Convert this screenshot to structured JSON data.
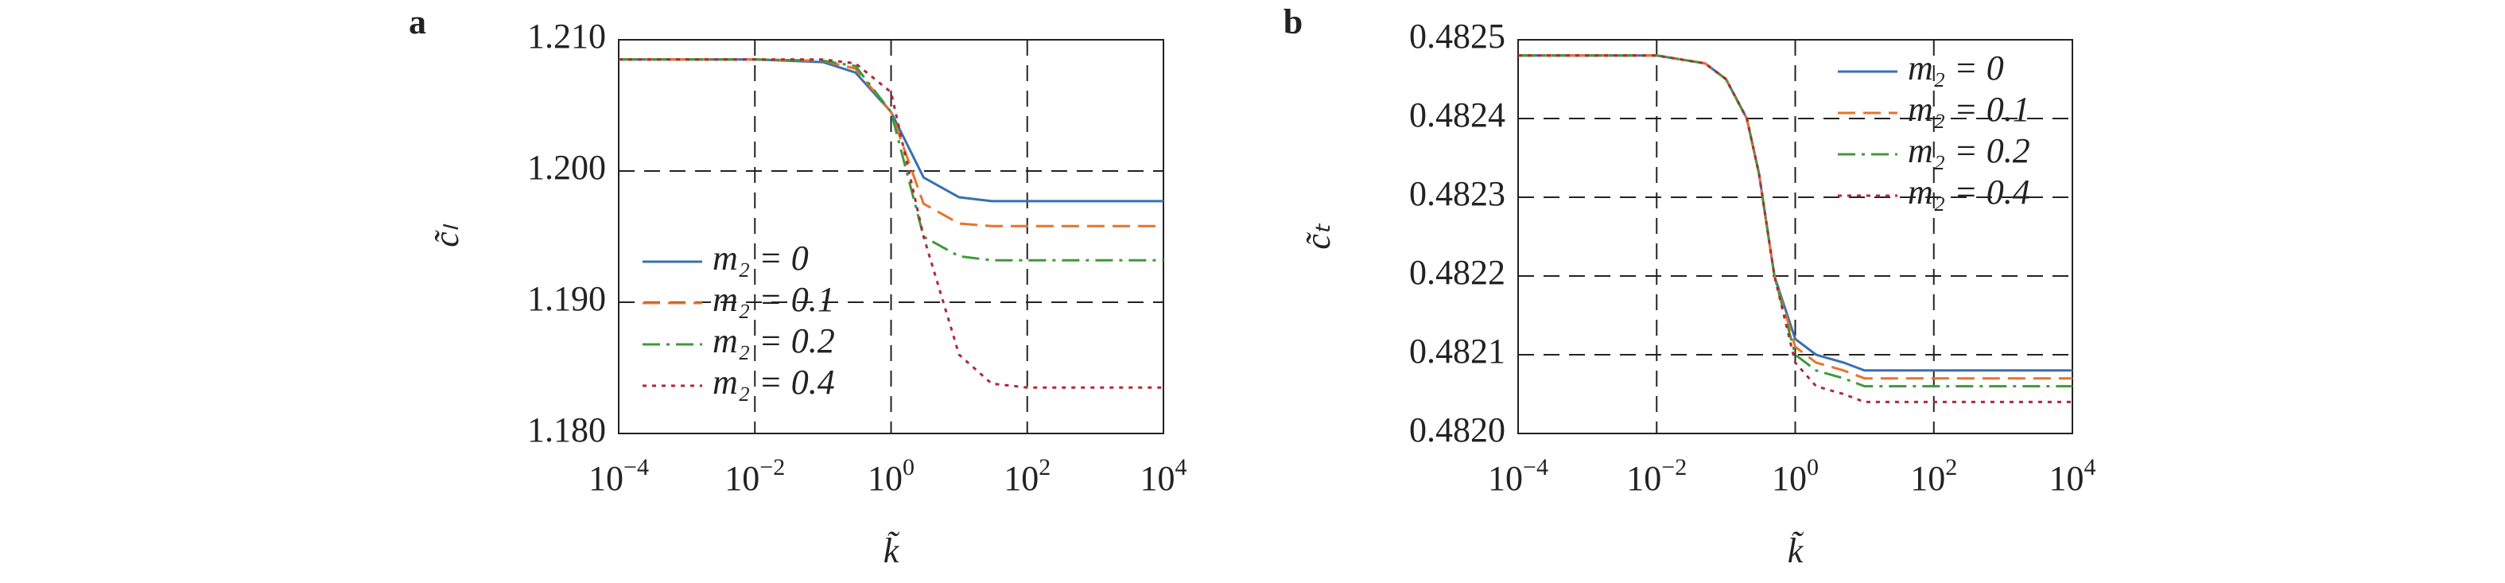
{
  "chart_data": [
    {
      "type": "line",
      "panel": "a",
      "x_label": "k̃",
      "y_label": "c̃ₗ",
      "log_x": true,
      "grid": true,
      "legend": "lower left",
      "xlim": [
        0.0001,
        10000
      ],
      "xticks": [
        {
          "value": 0.0001,
          "label": "10−4"
        },
        {
          "value": 0.01,
          "label": "10−2"
        },
        {
          "value": 1,
          "label": "100"
        },
        {
          "value": 100,
          "label": "102"
        },
        {
          "value": 10000,
          "label": "104"
        }
      ],
      "ylim": [
        1.18,
        1.21
      ],
      "yticks": [
        {
          "value": 1.21,
          "label": "1.210"
        },
        {
          "value": 1.2,
          "label": "1.200"
        },
        {
          "value": 1.19,
          "label": "1.190"
        },
        {
          "value": 1.18,
          "label": "1.180"
        }
      ],
      "x": [
        0.0001,
        0.001,
        0.01,
        0.1,
        0.3,
        1,
        3,
        10,
        30,
        100,
        1000,
        10000
      ],
      "series": [
        {
          "name": "m₂ = 0",
          "color": "#3a6fb0",
          "dash": "solid",
          "values": [
            1.2085,
            1.2085,
            1.2085,
            1.2083,
            1.2075,
            1.2045,
            1.1995,
            1.198,
            1.1977,
            1.1977,
            1.1977,
            1.1977
          ]
        },
        {
          "name": "m₂ = 0.1",
          "color": "#e8732a",
          "dash": "dashed",
          "values": [
            1.2085,
            1.2085,
            1.2085,
            1.2084,
            1.2078,
            1.2045,
            1.1975,
            1.196,
            1.1958,
            1.1958,
            1.1958,
            1.1958
          ]
        },
        {
          "name": "m₂ = 0.2",
          "color": "#3f9a3a",
          "dash": "dashdot",
          "values": [
            1.2085,
            1.2085,
            1.2085,
            1.2084,
            1.208,
            1.2045,
            1.195,
            1.1935,
            1.1932,
            1.1932,
            1.1932,
            1.1932
          ]
        },
        {
          "name": "m₂ = 0.4",
          "color": "#b0283a",
          "dash": "dotted",
          "values": [
            1.2085,
            1.2085,
            1.2085,
            1.2085,
            1.2082,
            1.206,
            1.195,
            1.186,
            1.1838,
            1.1835,
            1.1835,
            1.1835
          ]
        }
      ]
    },
    {
      "type": "line",
      "panel": "b",
      "x_label": "k̃",
      "y_label": "c̃ₜ",
      "log_x": true,
      "grid": true,
      "legend": "upper right",
      "xlim": [
        0.0001,
        10000
      ],
      "xticks": [
        {
          "value": 0.0001,
          "label": "10−4"
        },
        {
          "value": 0.01,
          "label": "10−2"
        },
        {
          "value": 1,
          "label": "100"
        },
        {
          "value": 100,
          "label": "102"
        },
        {
          "value": 10000,
          "label": "104"
        }
      ],
      "ylim": [
        0.482,
        0.4825
      ],
      "yticks": [
        0.4825,
        0.4824,
        0.4823,
        0.4822,
        0.4821,
        {
          "value": 0.482,
          "label": "0.4820"
        }
      ],
      "x": [
        0.0001,
        0.001,
        0.01,
        0.05,
        0.1,
        0.2,
        0.3,
        0.5,
        1,
        2,
        5,
        10,
        100,
        10000
      ],
      "series": [
        {
          "name": "m₂ = 0",
          "color": "#3a6fb0",
          "dash": "solid",
          "values": [
            0.48248,
            0.48248,
            0.48248,
            0.48247,
            0.48245,
            0.4824,
            0.48233,
            0.4822,
            0.48212,
            0.4821,
            0.48209,
            0.48208,
            0.48208,
            0.48208
          ]
        },
        {
          "name": "m₂ = 0.1",
          "color": "#e8732a",
          "dash": "dashed",
          "values": [
            0.48248,
            0.48248,
            0.48248,
            0.48247,
            0.48245,
            0.4824,
            0.48233,
            0.4822,
            0.48211,
            0.48209,
            0.48208,
            0.48207,
            0.48207,
            0.48207
          ]
        },
        {
          "name": "m₂ = 0.2",
          "color": "#3f9a3a",
          "dash": "dashdot",
          "values": [
            0.48248,
            0.48248,
            0.48248,
            0.48247,
            0.48245,
            0.4824,
            0.48233,
            0.4822,
            0.4821,
            0.48208,
            0.48207,
            0.48206,
            0.48206,
            0.48206
          ]
        },
        {
          "name": "m₂ = 0.4",
          "color": "#b0283a",
          "dash": "dotted",
          "values": [
            0.48248,
            0.48248,
            0.48248,
            0.48247,
            0.48245,
            0.4824,
            0.48233,
            0.4822,
            0.48209,
            0.48206,
            0.48205,
            0.48204,
            0.48204,
            0.48204
          ]
        }
      ]
    }
  ]
}
